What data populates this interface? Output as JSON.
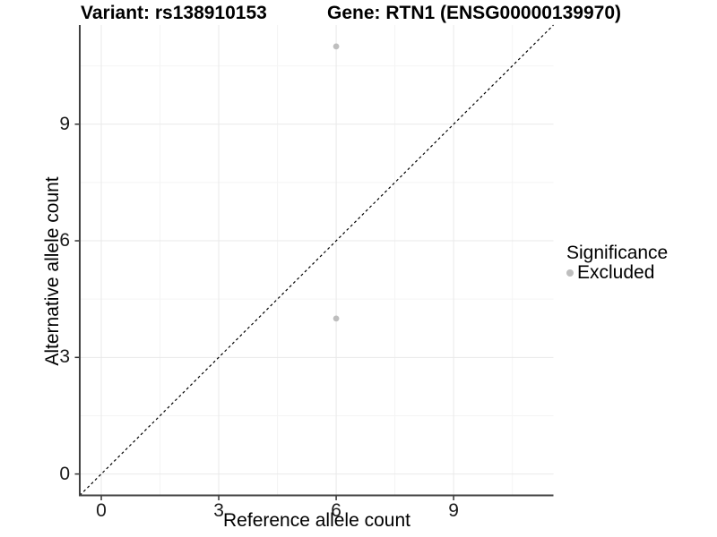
{
  "chart_data": {
    "type": "scatter",
    "title_left": "Variant: rs138910153",
    "title_right": "Gene: RTN1 (ENSG00000139970)",
    "xlabel": "Reference allele count",
    "ylabel": "Alternative allele count",
    "xlim": [
      -0.55,
      11.55
    ],
    "ylim": [
      -0.55,
      11.55
    ],
    "x_ticks": [
      0,
      3,
      6,
      9
    ],
    "y_ticks": [
      0,
      3,
      6,
      9
    ],
    "x_minor_ticks": [
      1.5,
      4.5,
      7.5,
      10.5
    ],
    "y_minor_ticks": [
      1.5,
      4.5,
      7.5,
      10.5
    ],
    "grid": true,
    "points": [
      {
        "x": 6,
        "y": 11,
        "series": "Excluded"
      },
      {
        "x": 6,
        "y": 4,
        "series": "Excluded"
      }
    ],
    "reference_line": {
      "kind": "abline",
      "slope": 1,
      "intercept": 0,
      "style": "dashed"
    },
    "legend": {
      "position": "right",
      "title": "Significance",
      "entries": [
        {
          "label": "Excluded",
          "color": "#bebebe"
        }
      ]
    },
    "colors": {
      "point": "#bebebe",
      "reference_line": "#000000",
      "grid_major": "#e9e9e9",
      "grid_minor": "#f4f4f4",
      "axis_line": "#404040",
      "tick_mark": "#333333",
      "tick_text": "#1a1a1a"
    }
  }
}
